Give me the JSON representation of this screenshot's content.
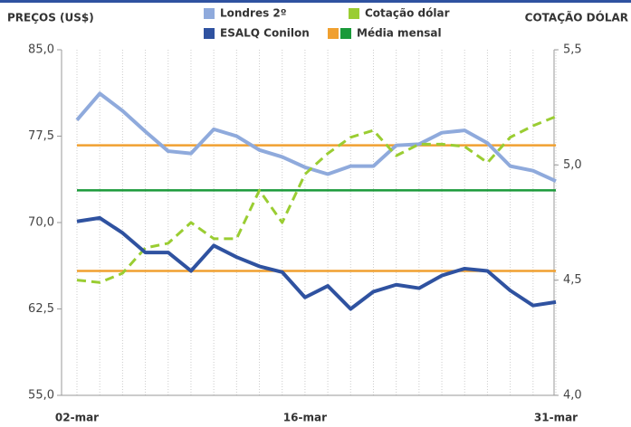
{
  "chart_data": {
    "type": "line",
    "y_label": "PREÇOS (US$)",
    "y2_label": "COTAÇÃO DÓLAR",
    "categories": [
      "02-mar",
      null,
      null,
      null,
      null,
      null,
      null,
      null,
      null,
      null,
      "16-mar",
      null,
      null,
      null,
      null,
      null,
      null,
      null,
      null,
      null,
      null,
      "31-mar"
    ],
    "series": [
      {
        "name": "Londres 2º",
        "color": "#8faadc",
        "axis": "y",
        "dashed": false,
        "values": [
          78.9,
          81.2,
          79.7,
          77.9,
          76.2,
          76.0,
          78.1,
          77.5,
          76.3,
          75.7,
          74.8,
          74.2,
          74.9,
          74.9,
          76.7,
          76.8,
          77.8,
          78.0,
          76.9,
          74.9,
          74.5,
          73.6
        ]
      },
      {
        "name": "Cotação dólar",
        "color": "#9acd32",
        "axis": "y2",
        "dashed": true,
        "values": [
          4.5,
          4.49,
          4.53,
          4.64,
          4.66,
          4.75,
          4.68,
          4.68,
          4.89,
          4.75,
          4.96,
          5.05,
          5.12,
          5.15,
          5.04,
          5.09,
          5.09,
          5.08,
          5.01,
          5.12,
          5.17,
          5.21
        ]
      },
      {
        "name": "ESALQ Conilon",
        "color": "#2f52a0",
        "axis": "y",
        "dashed": false,
        "values": [
          70.1,
          70.4,
          69.1,
          67.4,
          67.4,
          65.8,
          68.0,
          67.0,
          66.2,
          65.7,
          63.5,
          64.5,
          62.5,
          64.0,
          64.6,
          64.3,
          65.4,
          66.0,
          65.8,
          64.1,
          62.8,
          63.1
        ]
      }
    ],
    "mean_name": "Média mensal",
    "mean_lines": [
      {
        "value": 76.7,
        "color": "#f0a030",
        "axis": "y"
      },
      {
        "value": 65.8,
        "color": "#f0a030",
        "axis": "y"
      },
      {
        "value": 4.89,
        "color": "#1a9a3a",
        "axis": "y2"
      }
    ],
    "ylim": [
      55,
      85
    ],
    "yticks": [
      {
        "value": 55,
        "label": "55,0"
      },
      {
        "value": 62.5,
        "label": "62,5"
      },
      {
        "value": 70,
        "label": "70,0"
      },
      {
        "value": 77.5,
        "label": "77,5"
      },
      {
        "value": 85,
        "label": "85,0"
      }
    ],
    "y2lim": [
      4.0,
      5.5
    ],
    "y2ticks": [
      {
        "value": 4.0,
        "label": "4,0"
      },
      {
        "value": 4.5,
        "label": "4,5"
      },
      {
        "value": 5.0,
        "label": "5,0"
      },
      {
        "value": 5.5,
        "label": "5,5"
      }
    ],
    "grid": true
  }
}
